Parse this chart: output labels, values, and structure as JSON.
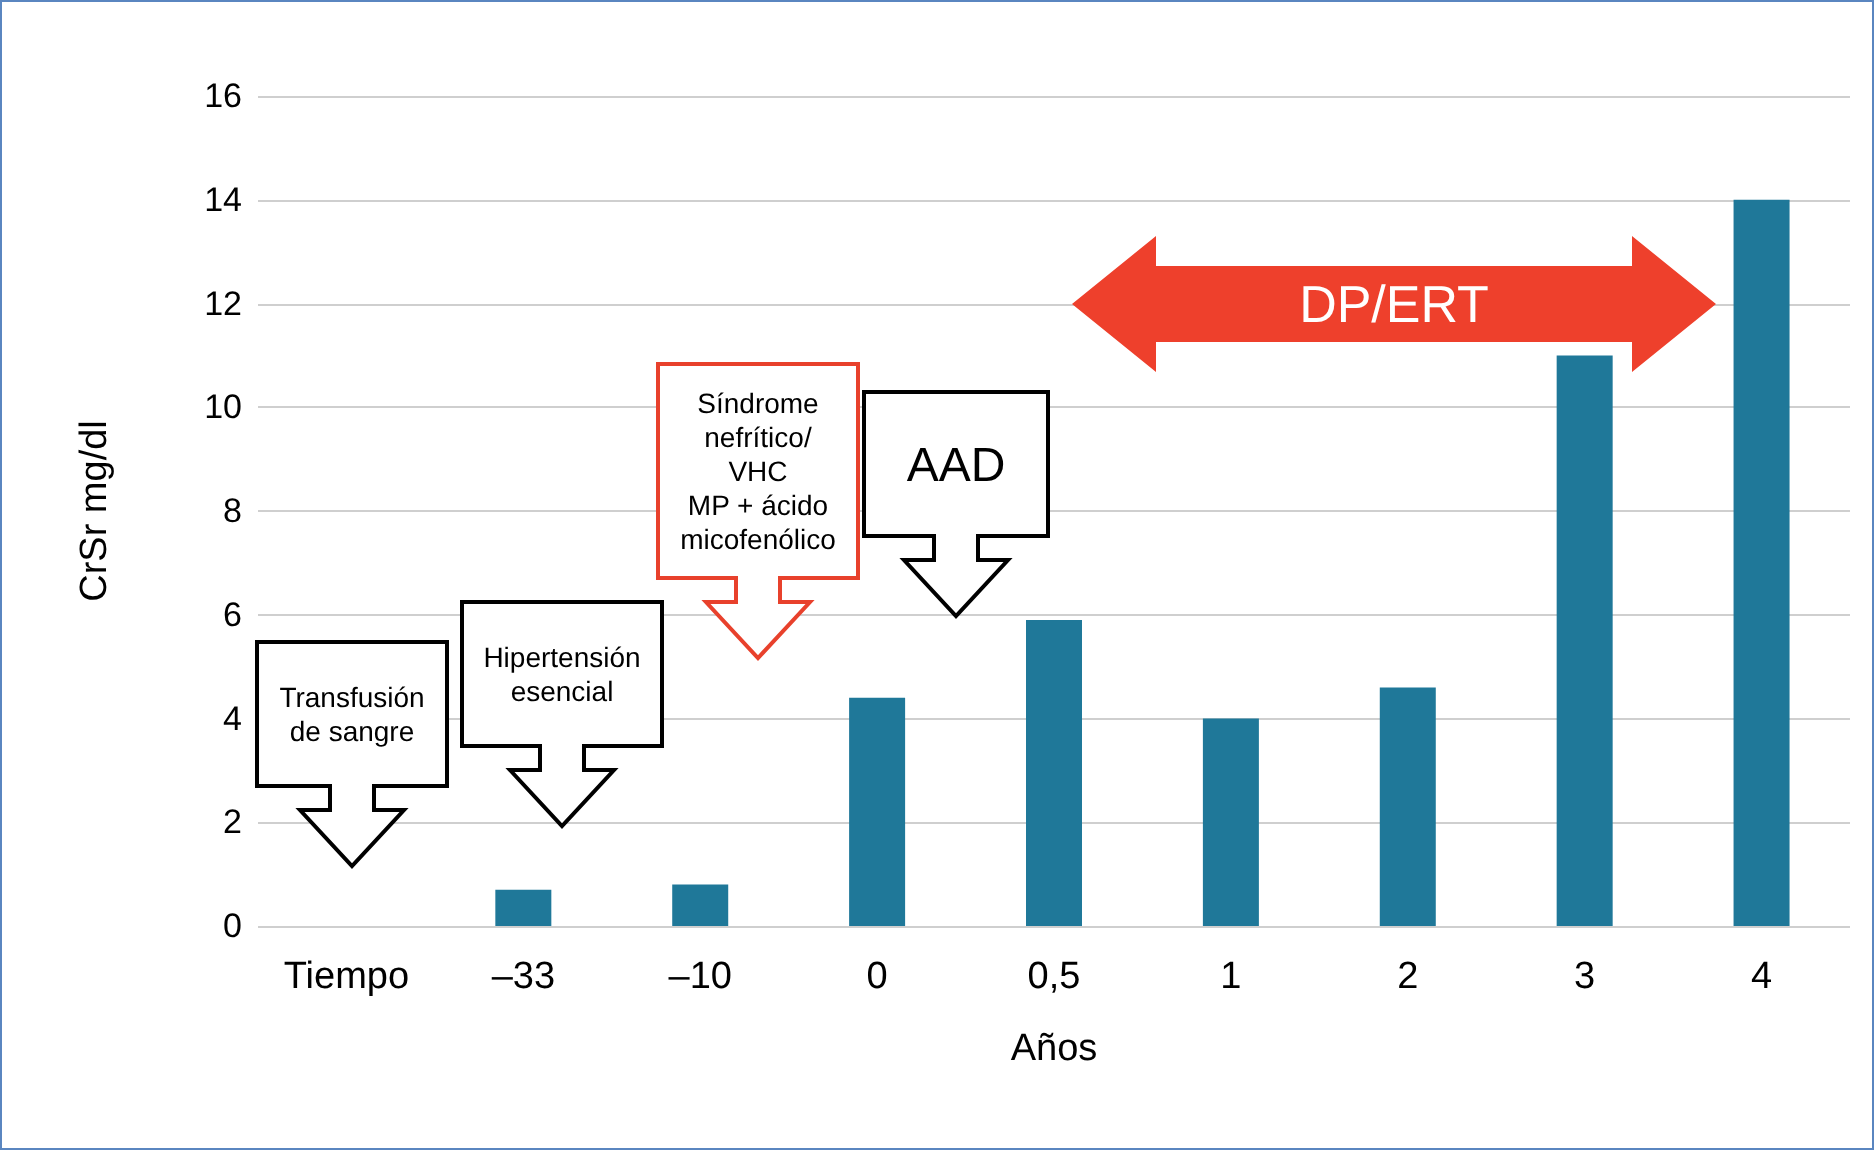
{
  "chart_data": {
    "type": "bar",
    "xlabel": "Años",
    "ylabel": "CrSr mg/dl",
    "categories": [
      "Tiempo",
      "–33",
      "–10",
      "0",
      "0,5",
      "1",
      "2",
      "3",
      "4"
    ],
    "values": [
      null,
      0.7,
      0.8,
      4.4,
      5.9,
      4.0,
      4.6,
      11.0,
      14.0
    ],
    "color": "#1f7899",
    "ylim": [
      0,
      16
    ],
    "yticks": [
      0,
      2,
      4,
      6,
      8,
      10,
      12,
      14,
      16
    ],
    "grid": "y",
    "annotations": [
      "Transfusión\nde sangre",
      "Hipertensión\nesencial",
      "Síndrome\nnefrítico/\nVHC\nMP + ácido\nmicofenólico",
      "AAD",
      "DP/ERT"
    ]
  }
}
